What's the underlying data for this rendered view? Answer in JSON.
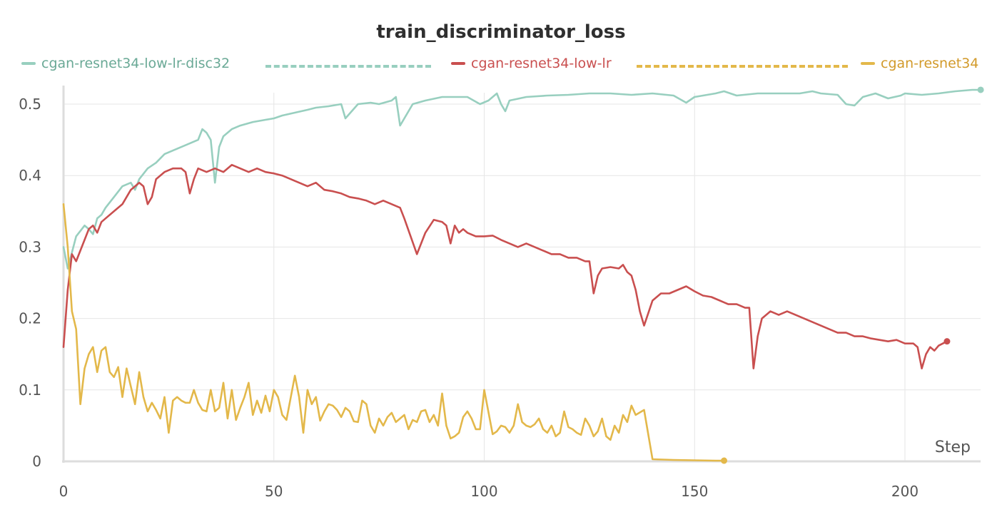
{
  "chart_data": {
    "type": "line",
    "title": "train_discriminator_loss",
    "xlabel": "Step",
    "ylabel": "",
    "xlim": [
      0,
      218
    ],
    "ylim": [
      0,
      0.52
    ],
    "xticks": [
      "0",
      "50",
      "100",
      "150",
      "200"
    ],
    "yticks": [
      "0",
      "0.1",
      "0.2",
      "0.3",
      "0.4",
      "0.5"
    ],
    "xtick_values": [
      0,
      50,
      100,
      150,
      200
    ],
    "ytick_values": [
      0,
      0.1,
      0.2,
      0.3,
      0.4,
      0.5
    ],
    "grid": true,
    "legend_position": "top",
    "series": [
      {
        "name": "cgan-resnet34-low-lr-disc32",
        "color": "#98cfbf",
        "x": [
          0,
          1,
          3,
          5,
          6,
          7,
          8,
          9,
          10,
          12,
          14,
          16,
          17,
          18,
          20,
          22,
          24,
          26,
          28,
          30,
          32,
          33,
          34,
          35,
          36,
          37,
          38,
          40,
          42,
          45,
          48,
          50,
          52,
          55,
          58,
          60,
          63,
          66,
          67,
          70,
          73,
          75,
          78,
          79,
          80,
          83,
          86,
          90,
          94,
          96,
          99,
          101,
          103,
          104,
          105,
          106,
          110,
          115,
          120,
          125,
          130,
          135,
          140,
          145,
          148,
          150,
          153,
          155,
          157,
          160,
          165,
          170,
          175,
          178,
          180,
          184,
          186,
          188,
          190,
          193,
          196,
          199,
          200,
          204,
          208,
          212,
          216,
          218
        ],
        "values": [
          0.3,
          0.27,
          0.315,
          0.33,
          0.325,
          0.318,
          0.34,
          0.345,
          0.355,
          0.37,
          0.385,
          0.39,
          0.38,
          0.395,
          0.41,
          0.418,
          0.43,
          0.435,
          0.44,
          0.445,
          0.45,
          0.465,
          0.46,
          0.45,
          0.39,
          0.44,
          0.455,
          0.465,
          0.47,
          0.475,
          0.478,
          0.48,
          0.484,
          0.488,
          0.492,
          0.495,
          0.497,
          0.5,
          0.48,
          0.5,
          0.502,
          0.5,
          0.505,
          0.51,
          0.47,
          0.5,
          0.505,
          0.51,
          0.51,
          0.51,
          0.5,
          0.505,
          0.515,
          0.5,
          0.49,
          0.505,
          0.51,
          0.512,
          0.513,
          0.515,
          0.515,
          0.513,
          0.515,
          0.512,
          0.502,
          0.51,
          0.513,
          0.515,
          0.518,
          0.512,
          0.515,
          0.515,
          0.515,
          0.518,
          0.515,
          0.513,
          0.5,
          0.498,
          0.51,
          0.515,
          0.508,
          0.512,
          0.515,
          0.513,
          0.515,
          0.518,
          0.52,
          0.52
        ]
      },
      {
        "name": "cgan-resnet34-low-lr",
        "color": "#c94f4f",
        "x": [
          0,
          1,
          2,
          3,
          4,
          5,
          6,
          7,
          8,
          9,
          10,
          12,
          14,
          16,
          18,
          19,
          20,
          21,
          22,
          24,
          26,
          28,
          29,
          30,
          31,
          32,
          34,
          36,
          38,
          40,
          42,
          44,
          46,
          48,
          50,
          52,
          54,
          56,
          58,
          60,
          62,
          64,
          66,
          68,
          70,
          72,
          74,
          76,
          78,
          80,
          81,
          84,
          86,
          88,
          90,
          91,
          92,
          93,
          94,
          95,
          96,
          98,
          100,
          102,
          104,
          106,
          108,
          110,
          112,
          114,
          116,
          118,
          120,
          122,
          124,
          125,
          126,
          127,
          128,
          130,
          132,
          133,
          134,
          135,
          136,
          137,
          138,
          140,
          142,
          144,
          146,
          148,
          150,
          152,
          154,
          156,
          158,
          160,
          162,
          163,
          164,
          165,
          166,
          168,
          170,
          172,
          174,
          176,
          178,
          180,
          182,
          184,
          186,
          188,
          190,
          192,
          194,
          196,
          198,
          200,
          202,
          203,
          204,
          205,
          206,
          207,
          208,
          210
        ],
        "values": [
          0.16,
          0.24,
          0.29,
          0.28,
          0.295,
          0.31,
          0.325,
          0.33,
          0.32,
          0.335,
          0.34,
          0.35,
          0.36,
          0.38,
          0.39,
          0.385,
          0.36,
          0.37,
          0.395,
          0.405,
          0.41,
          0.41,
          0.405,
          0.375,
          0.395,
          0.41,
          0.405,
          0.41,
          0.405,
          0.415,
          0.41,
          0.405,
          0.41,
          0.405,
          0.403,
          0.4,
          0.395,
          0.39,
          0.385,
          0.39,
          0.38,
          0.378,
          0.375,
          0.37,
          0.368,
          0.365,
          0.36,
          0.365,
          0.36,
          0.355,
          0.34,
          0.29,
          0.32,
          0.338,
          0.335,
          0.33,
          0.305,
          0.33,
          0.32,
          0.325,
          0.32,
          0.315,
          0.315,
          0.316,
          0.31,
          0.305,
          0.3,
          0.305,
          0.3,
          0.295,
          0.29,
          0.29,
          0.285,
          0.285,
          0.28,
          0.28,
          0.235,
          0.26,
          0.27,
          0.272,
          0.27,
          0.275,
          0.265,
          0.26,
          0.24,
          0.21,
          0.19,
          0.225,
          0.235,
          0.235,
          0.24,
          0.245,
          0.238,
          0.232,
          0.23,
          0.225,
          0.22,
          0.22,
          0.215,
          0.215,
          0.13,
          0.175,
          0.2,
          0.21,
          0.205,
          0.21,
          0.205,
          0.2,
          0.195,
          0.19,
          0.185,
          0.18,
          0.18,
          0.175,
          0.175,
          0.172,
          0.17,
          0.168,
          0.17,
          0.165,
          0.165,
          0.16,
          0.13,
          0.15,
          0.16,
          0.155,
          0.162,
          0.168
        ]
      },
      {
        "name": "cgan-resnet34",
        "color": "#e3b84a",
        "x": [
          0,
          1,
          2,
          3,
          4,
          5,
          6,
          7,
          8,
          9,
          10,
          11,
          12,
          13,
          14,
          15,
          16,
          17,
          18,
          19,
          20,
          21,
          22,
          23,
          24,
          25,
          26,
          27,
          28,
          29,
          30,
          31,
          32,
          33,
          34,
          35,
          36,
          37,
          38,
          39,
          40,
          41,
          42,
          43,
          44,
          45,
          46,
          47,
          48,
          49,
          50,
          51,
          52,
          53,
          55,
          56,
          57,
          58,
          59,
          60,
          61,
          62,
          63,
          64,
          65,
          66,
          67,
          68,
          69,
          70,
          71,
          72,
          73,
          74,
          75,
          76,
          77,
          78,
          79,
          80,
          81,
          82,
          83,
          84,
          85,
          86,
          87,
          88,
          89,
          90,
          91,
          92,
          93,
          94,
          95,
          96,
          97,
          98,
          99,
          100,
          102,
          103,
          104,
          105,
          106,
          107,
          108,
          109,
          110,
          111,
          112,
          113,
          114,
          115,
          116,
          117,
          118,
          119,
          120,
          121,
          122,
          123,
          124,
          125,
          126,
          127,
          128,
          129,
          130,
          131,
          132,
          133,
          134,
          135,
          136,
          138,
          140,
          145,
          150,
          155,
          157
        ],
        "values": [
          0.36,
          0.3,
          0.21,
          0.185,
          0.08,
          0.13,
          0.15,
          0.16,
          0.125,
          0.155,
          0.16,
          0.125,
          0.118,
          0.132,
          0.09,
          0.13,
          0.105,
          0.08,
          0.125,
          0.09,
          0.07,
          0.082,
          0.072,
          0.06,
          0.09,
          0.04,
          0.085,
          0.09,
          0.085,
          0.082,
          0.082,
          0.1,
          0.082,
          0.072,
          0.07,
          0.1,
          0.07,
          0.075,
          0.11,
          0.06,
          0.1,
          0.058,
          0.075,
          0.09,
          0.11,
          0.065,
          0.085,
          0.068,
          0.092,
          0.07,
          0.1,
          0.09,
          0.065,
          0.058,
          0.12,
          0.09,
          0.04,
          0.1,
          0.08,
          0.09,
          0.057,
          0.07,
          0.08,
          0.078,
          0.072,
          0.062,
          0.075,
          0.07,
          0.056,
          0.055,
          0.085,
          0.08,
          0.05,
          0.04,
          0.06,
          0.05,
          0.062,
          0.068,
          0.055,
          0.06,
          0.065,
          0.045,
          0.058,
          0.055,
          0.07,
          0.072,
          0.055,
          0.065,
          0.05,
          0.095,
          0.05,
          0.032,
          0.035,
          0.04,
          0.062,
          0.07,
          0.06,
          0.045,
          0.045,
          0.1,
          0.038,
          0.042,
          0.05,
          0.048,
          0.04,
          0.05,
          0.08,
          0.055,
          0.05,
          0.048,
          0.052,
          0.06,
          0.045,
          0.04,
          0.05,
          0.035,
          0.04,
          0.07,
          0.048,
          0.045,
          0.04,
          0.037,
          0.06,
          0.05,
          0.035,
          0.042,
          0.06,
          0.035,
          0.03,
          0.05,
          0.04,
          0.065,
          0.055,
          0.078,
          0.065,
          0.072,
          0.003,
          0.002,
          0.0015,
          0.001,
          0.001
        ]
      }
    ]
  }
}
